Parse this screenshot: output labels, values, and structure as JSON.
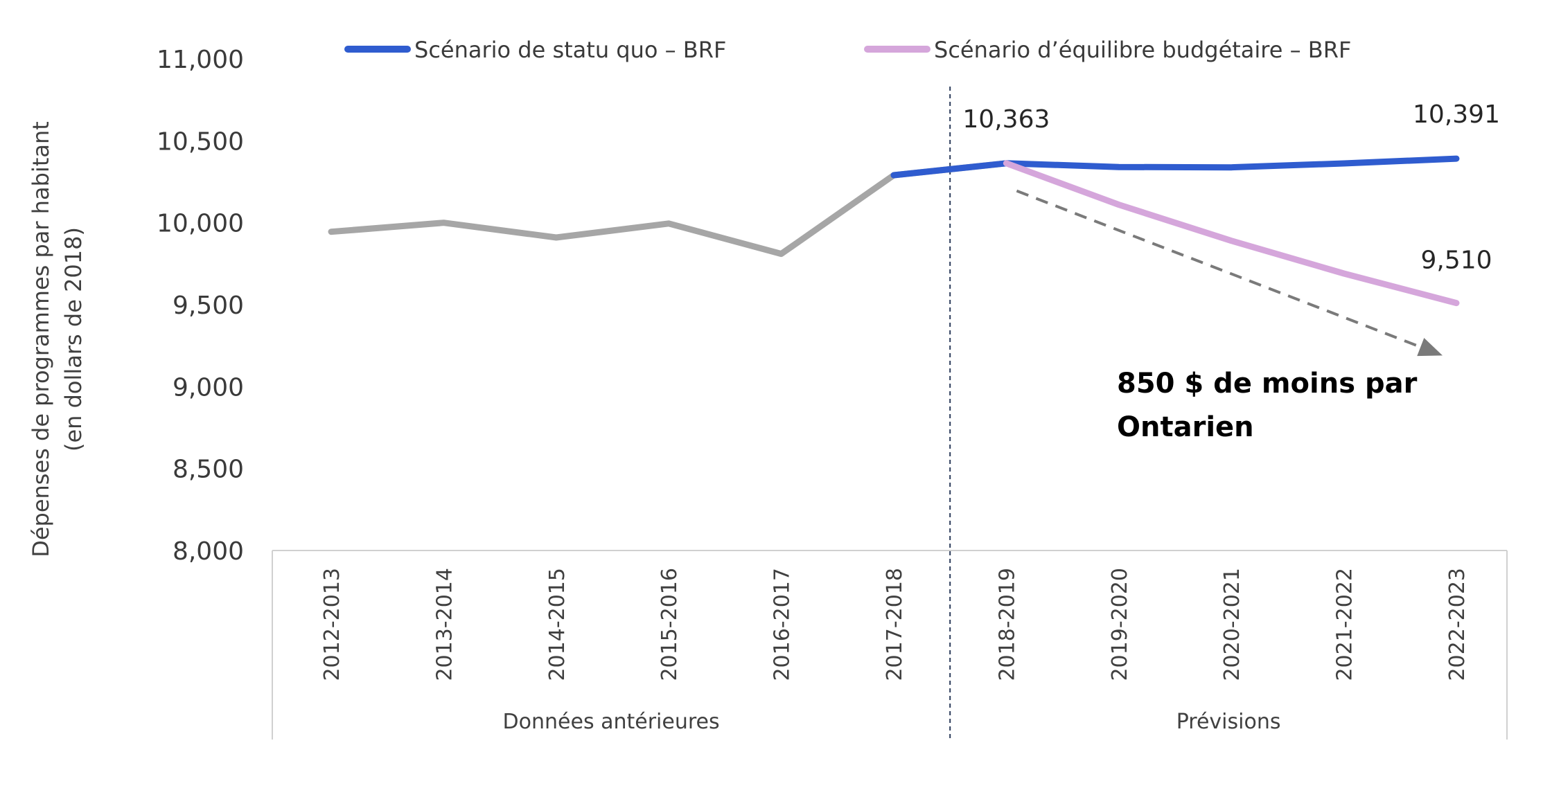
{
  "chart_data": {
    "type": "line",
    "categories": [
      "2012-2013",
      "2013-2014",
      "2014-2015",
      "2015-2016",
      "2016-2017",
      "2017-2018",
      "2018-2019",
      "2019-2020",
      "2020-2021",
      "2021-2022",
      "2022-2023"
    ],
    "groups": [
      {
        "label": "Données antérieures",
        "from": "2012-2013",
        "to": "2017-2018"
      },
      {
        "label": "Prévisions",
        "from": "2018-2019",
        "to": "2022-2023"
      }
    ],
    "series": [
      {
        "key": "historical",
        "color": "#a6a6a6",
        "values": [
          9945,
          10000,
          9910,
          9995,
          9810,
          10290,
          10363,
          null,
          null,
          null,
          null
        ]
      },
      {
        "key": "status_quo",
        "name": "Scénario de statu quo – BRF",
        "color": "#2f5ccf",
        "values": [
          null,
          null,
          null,
          null,
          null,
          10290,
          10363,
          10340,
          10338,
          10362,
          10391
        ]
      },
      {
        "key": "balanced",
        "name": "Scénario d’équilibre budgétaire – BRF",
        "color": "#d5a6db",
        "values": [
          null,
          null,
          null,
          null,
          null,
          null,
          10363,
          10110,
          9890,
          9690,
          9510
        ]
      }
    ],
    "data_labels": [
      {
        "text": "10,363",
        "category": "2018-2019",
        "value": 10363
      },
      {
        "text": "10,391",
        "category": "2022-2023",
        "value": 10391
      },
      {
        "text": "9,510",
        "category": "2022-2023",
        "value": 9510
      }
    ],
    "yticks": [
      "8,000",
      "8,500",
      "9,000",
      "9,500",
      "10,000",
      "10,500",
      "11,000"
    ],
    "ylim": [
      8000,
      11000
    ],
    "ylabel_line1": "Dépenses de programmes par habitant",
    "ylabel_line2": "(en dollars de 2018)",
    "annotation_line1": "850 $ de moins par",
    "annotation_line2": "Ontarien",
    "legend_position": "top",
    "grid": false
  }
}
